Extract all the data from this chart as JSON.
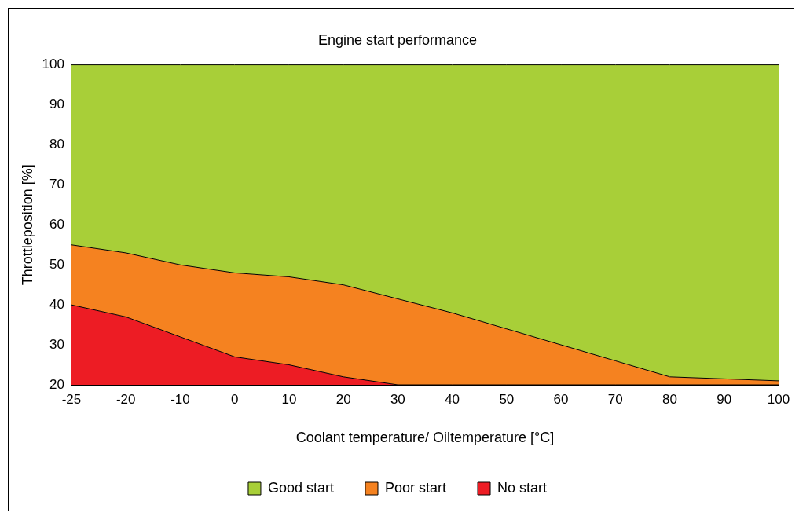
{
  "chart_data": {
    "type": "area",
    "title": "Engine start performance",
    "xlabel": "Coolant temperature/ Oiltemperature [°C]",
    "ylabel": "Throttleposition [%]",
    "categories": [
      "-25",
      "-20",
      "-10",
      "0",
      "10",
      "20",
      "30",
      "40",
      "50",
      "60",
      "70",
      "80",
      "90",
      "100"
    ],
    "series": [
      {
        "name": "No start",
        "color": "#ed1c24",
        "values": [
          40,
          37,
          32,
          27,
          25,
          22,
          20,
          20,
          20,
          20,
          20,
          20,
          20,
          20
        ]
      },
      {
        "name": "Poor start",
        "color": "#f58220",
        "values": [
          55,
          53,
          50,
          48,
          47,
          45,
          41.5,
          38,
          34,
          30,
          26,
          22,
          21.5,
          21
        ]
      },
      {
        "name": "Good start",
        "color": "#a8cf38",
        "values": [
          100,
          100,
          100,
          100,
          100,
          100,
          100,
          100,
          100,
          100,
          100,
          100,
          100,
          100
        ]
      }
    ],
    "ylim": [
      20,
      100
    ],
    "yticks": [
      20,
      30,
      40,
      50,
      60,
      70,
      80,
      90,
      100
    ],
    "grid": false,
    "legend": "bottom",
    "marker": "none"
  }
}
